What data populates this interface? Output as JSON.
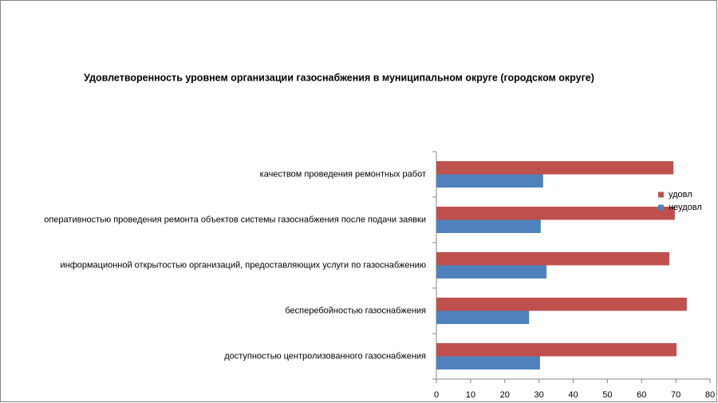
{
  "chart_data": {
    "type": "hbar",
    "title": "Удовлетворенность уровнем организации газоснабжения в муниципальном округе (городском округе)",
    "categories": [
      "качеством проведения ремонтных работ",
      "оперативностью проведения ремонта объектов системы газоснабжения после подачи заявки",
      "информационной открытостью организаций, предоставляющих услуги по газоснабжению",
      "бесперебойностью газоснабжения",
      "доступностью центролизованного газоснабжения"
    ],
    "series": [
      {
        "name": "удовл",
        "color": "#c0504d",
        "values": [
          69.3,
          69.7,
          68.1,
          73.2,
          70.2
        ]
      },
      {
        "name": "неудовл",
        "color": "#4f81bd",
        "values": [
          31.2,
          30.5,
          32.2,
          27.1,
          30.3
        ]
      }
    ],
    "xlim": [
      0,
      80
    ],
    "xticks": [
      0,
      10,
      20,
      30,
      40,
      50,
      60,
      70,
      80
    ],
    "grid": false,
    "legend": "right"
  }
}
